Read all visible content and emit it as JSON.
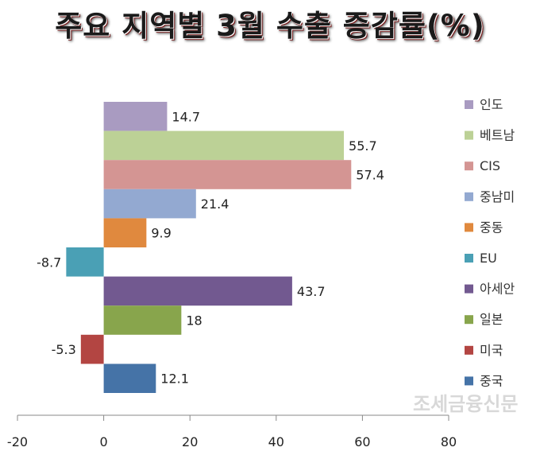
{
  "chart_data": {
    "type": "bar",
    "orientation": "horizontal",
    "title": "주요 지역별 3월 수출 증감률(%)",
    "categories": [
      "인도",
      "베트남",
      "CIS",
      "중남미",
      "중동",
      "EU",
      "아세안",
      "일본",
      "미국",
      "중국"
    ],
    "values": [
      14.7,
      55.7,
      57.4,
      21.4,
      9.9,
      -8.7,
      43.7,
      18,
      -5.3,
      12.1
    ],
    "colors": [
      "#a99bc1",
      "#bcd196",
      "#d49593",
      "#93a9d1",
      "#e0893e",
      "#4aa0b5",
      "#725990",
      "#88a54c",
      "#b34542",
      "#4573a7"
    ],
    "xlim": [
      -20,
      80
    ],
    "xticks": [
      "-20",
      "0",
      "20",
      "40",
      "60",
      "80"
    ],
    "xlabel": "",
    "ylabel": "",
    "grid": false,
    "legend": "right"
  },
  "watermark": "조세금융신문"
}
